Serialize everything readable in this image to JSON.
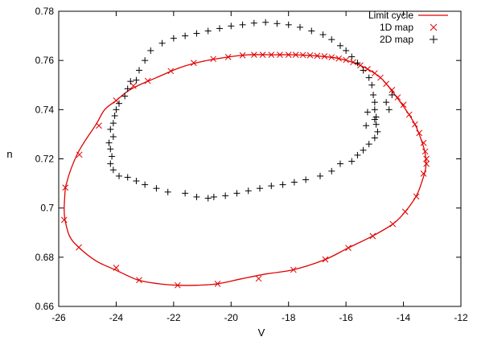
{
  "chart_data": {
    "type": "line",
    "xlabel": "V",
    "ylabel": "n",
    "xlim": [
      -26,
      -12
    ],
    "ylim": [
      0.66,
      0.78
    ],
    "x_ticks": [
      -26,
      -24,
      -22,
      -20,
      -18,
      -16,
      -14,
      -12
    ],
    "y_ticks": [
      0.66,
      0.68,
      0.7,
      0.72,
      0.74,
      0.76,
      0.78
    ],
    "x_tick_labels": [
      "-26",
      "-24",
      "-22",
      "-20",
      "-18",
      "-16",
      "-14",
      "-12"
    ],
    "y_tick_labels": [
      "0.66",
      "0.68",
      "0.7",
      "0.72",
      "0.74",
      "0.76",
      "0.78"
    ],
    "grid": false,
    "legend_position": "top-right",
    "series": [
      {
        "name": "Limit cycle",
        "style": "line",
        "color": "#e00000",
        "points": [
          [
            -25.77,
            0.7083
          ],
          [
            -25.81,
            0.7
          ],
          [
            -25.78,
            0.6952
          ],
          [
            -25.62,
            0.6885
          ],
          [
            -25.3,
            0.684
          ],
          [
            -24.7,
            0.6785
          ],
          [
            -24.0,
            0.6747
          ],
          [
            -23.23,
            0.6707
          ],
          [
            -22.5,
            0.6692
          ],
          [
            -21.86,
            0.6686
          ],
          [
            -21.2,
            0.6686
          ],
          [
            -20.47,
            0.6692
          ],
          [
            -19.61,
            0.6713
          ],
          [
            -18.73,
            0.6733
          ],
          [
            -17.83,
            0.6749
          ],
          [
            -16.72,
            0.6791
          ],
          [
            -15.92,
            0.6838
          ],
          [
            -15.08,
            0.6886
          ],
          [
            -14.37,
            0.6935
          ],
          [
            -13.94,
            0.6985
          ],
          [
            -13.55,
            0.705
          ],
          [
            -13.35,
            0.711
          ],
          [
            -13.23,
            0.716
          ],
          [
            -13.22,
            0.72
          ],
          [
            -13.28,
            0.724
          ],
          [
            -13.42,
            0.729
          ],
          [
            -13.6,
            0.734
          ],
          [
            -13.92,
            0.74
          ],
          [
            -14.3,
            0.746
          ],
          [
            -14.8,
            0.753
          ],
          [
            -15.5,
            0.758
          ],
          [
            -16.25,
            0.7608
          ],
          [
            -17.0,
            0.7618
          ],
          [
            -17.8,
            0.7623
          ],
          [
            -18.5,
            0.7623
          ],
          [
            -19.4,
            0.7623
          ],
          [
            -20.1,
            0.7614
          ],
          [
            -21.0,
            0.7596
          ],
          [
            -21.8,
            0.757
          ],
          [
            -22.6,
            0.753
          ],
          [
            -23.2,
            0.75
          ],
          [
            -23.6,
            0.7475
          ],
          [
            -24.0,
            0.7437
          ],
          [
            -24.4,
            0.74
          ],
          [
            -24.7,
            0.734
          ],
          [
            -25.1,
            0.727
          ],
          [
            -25.35,
            0.722
          ],
          [
            -25.6,
            0.715
          ],
          [
            -25.77,
            0.7083
          ]
        ]
      },
      {
        "name": "1D map",
        "style": "x",
        "color": "#e00000",
        "points": [
          [
            -25.77,
            0.7083
          ],
          [
            -25.81,
            0.6952
          ],
          [
            -25.3,
            0.684
          ],
          [
            -24.0,
            0.6757
          ],
          [
            -23.2,
            0.6707
          ],
          [
            -21.86,
            0.6686
          ],
          [
            -20.47,
            0.6692
          ],
          [
            -19.04,
            0.6713
          ],
          [
            -17.83,
            0.6749
          ],
          [
            -16.72,
            0.6791
          ],
          [
            -15.92,
            0.6838
          ],
          [
            -15.07,
            0.6886
          ],
          [
            -14.37,
            0.6935
          ],
          [
            -13.94,
            0.6985
          ],
          [
            -13.55,
            0.7047
          ],
          [
            -13.3,
            0.714
          ],
          [
            -13.2,
            0.718
          ],
          [
            -13.2,
            0.72
          ],
          [
            -13.24,
            0.723
          ],
          [
            -13.3,
            0.7265
          ],
          [
            -13.45,
            0.7305
          ],
          [
            -13.6,
            0.734
          ],
          [
            -13.8,
            0.738
          ],
          [
            -14.0,
            0.742
          ],
          [
            -14.2,
            0.745
          ],
          [
            -14.4,
            0.748
          ],
          [
            -14.6,
            0.7505
          ],
          [
            -14.8,
            0.753
          ],
          [
            -15.0,
            0.7548
          ],
          [
            -15.25,
            0.7565
          ],
          [
            -15.5,
            0.758
          ],
          [
            -15.75,
            0.7593
          ],
          [
            -16.0,
            0.7602
          ],
          [
            -16.25,
            0.7608
          ],
          [
            -16.5,
            0.7613
          ],
          [
            -16.75,
            0.7617
          ],
          [
            -17.0,
            0.7619
          ],
          [
            -17.25,
            0.7621
          ],
          [
            -17.5,
            0.7622
          ],
          [
            -17.75,
            0.7623
          ],
          [
            -18.0,
            0.7623
          ],
          [
            -18.3,
            0.7623
          ],
          [
            -18.6,
            0.7623
          ],
          [
            -18.9,
            0.7623
          ],
          [
            -19.2,
            0.7623
          ],
          [
            -19.6,
            0.7621
          ],
          [
            -20.1,
            0.7614
          ],
          [
            -20.62,
            0.7606
          ],
          [
            -21.3,
            0.759
          ],
          [
            -22.1,
            0.7557
          ],
          [
            -22.9,
            0.7517
          ],
          [
            -23.4,
            0.7497
          ],
          [
            -24.0,
            0.7437
          ],
          [
            -24.6,
            0.7335
          ],
          [
            -25.28,
            0.7217
          ]
        ]
      },
      {
        "name": "2D map",
        "style": "+",
        "color": "#000000",
        "points": [
          [
            -23.3,
            0.752
          ],
          [
            -23.5,
            0.7515
          ],
          [
            -23.6,
            0.7485
          ],
          [
            -23.7,
            0.7455
          ],
          [
            -23.9,
            0.7425
          ],
          [
            -24.0,
            0.74
          ],
          [
            -24.05,
            0.7375
          ],
          [
            -24.1,
            0.7345
          ],
          [
            -24.2,
            0.732
          ],
          [
            -24.1,
            0.729
          ],
          [
            -24.25,
            0.7265
          ],
          [
            -24.2,
            0.724
          ],
          [
            -24.15,
            0.721
          ],
          [
            -24.2,
            0.718
          ],
          [
            -24.1,
            0.7155
          ],
          [
            -23.9,
            0.713
          ],
          [
            -23.6,
            0.7125
          ],
          [
            -23.3,
            0.711
          ],
          [
            -23.0,
            0.7095
          ],
          [
            -22.6,
            0.708
          ],
          [
            -22.2,
            0.7065
          ],
          [
            -21.6,
            0.706
          ],
          [
            -21.2,
            0.7045
          ],
          [
            -20.8,
            0.704
          ],
          [
            -20.6,
            0.7045
          ],
          [
            -20.2,
            0.705
          ],
          [
            -19.8,
            0.706
          ],
          [
            -19.4,
            0.707
          ],
          [
            -19.0,
            0.708
          ],
          [
            -18.6,
            0.709
          ],
          [
            -18.2,
            0.7095
          ],
          [
            -17.8,
            0.7105
          ],
          [
            -17.4,
            0.7115
          ],
          [
            -16.9,
            0.713
          ],
          [
            -16.5,
            0.715
          ],
          [
            -16.2,
            0.718
          ],
          [
            -15.8,
            0.719
          ],
          [
            -15.6,
            0.7215
          ],
          [
            -15.4,
            0.7235
          ],
          [
            -15.2,
            0.726
          ],
          [
            -15.0,
            0.7285
          ],
          [
            -14.9,
            0.731
          ],
          [
            -14.95,
            0.734
          ],
          [
            -14.95,
            0.737
          ],
          [
            -15.0,
            0.74
          ],
          [
            -15.0,
            0.743
          ],
          [
            -15.05,
            0.746
          ],
          [
            -15.1,
            0.75
          ],
          [
            -15.2,
            0.753
          ],
          [
            -15.4,
            0.756
          ],
          [
            -15.6,
            0.759
          ],
          [
            -15.8,
            0.7615
          ],
          [
            -16.0,
            0.764
          ],
          [
            -16.2,
            0.766
          ],
          [
            -16.5,
            0.7685
          ],
          [
            -16.8,
            0.7705
          ],
          [
            -17.2,
            0.772
          ],
          [
            -17.6,
            0.7735
          ],
          [
            -18.0,
            0.7745
          ],
          [
            -18.4,
            0.775
          ],
          [
            -18.8,
            0.7755
          ],
          [
            -19.2,
            0.7752
          ],
          [
            -19.6,
            0.7745
          ],
          [
            -20.0,
            0.774
          ],
          [
            -20.4,
            0.773
          ],
          [
            -20.8,
            0.772
          ],
          [
            -21.2,
            0.771
          ],
          [
            -21.6,
            0.77
          ],
          [
            -22.0,
            0.769
          ],
          [
            -22.4,
            0.767
          ],
          [
            -22.8,
            0.764
          ],
          [
            -23.0,
            0.76
          ],
          [
            -23.2,
            0.756
          ],
          [
            -15.25,
            0.739
          ],
          [
            -15.3,
            0.7335
          ],
          [
            -15.0,
            0.736
          ],
          [
            -14.5,
            0.74
          ],
          [
            -14.6,
            0.743
          ],
          [
            -14.4,
            0.746
          ]
        ]
      }
    ]
  }
}
